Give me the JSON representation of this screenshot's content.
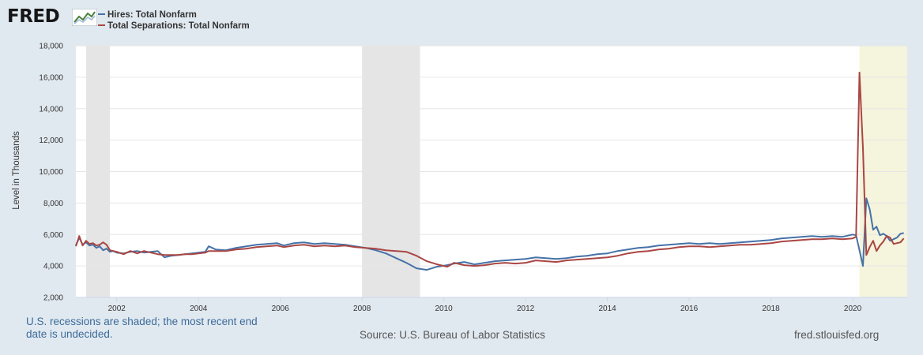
{
  "brand": {
    "logo_text": "FRED",
    "logo_icon": "fred-chart-logo-icon"
  },
  "legend": {
    "items": [
      {
        "label": "Hires: Total Nonfarm",
        "color": "#4572a7"
      },
      {
        "label": "Total Separations: Total Nonfarm",
        "color": "#aa4643"
      }
    ]
  },
  "footer": {
    "note": "U.S. recessions are shaded; the most recent end date is undecided.",
    "source": "Source: U.S. Bureau of Labor Statistics",
    "url": "fred.stlouisfed.org"
  },
  "colors": {
    "background": "#e1e9f0",
    "plot": "#ffffff",
    "recession": "#e5e5e5",
    "recession_open": "#f5f4dc",
    "gridline": "#e6e6e6",
    "hires": "#4572a7",
    "separations": "#aa4643"
  },
  "chart_data": {
    "type": "line",
    "title": "",
    "xlabel": "",
    "ylabel": "Level in Thousands",
    "xlim": [
      "2001-01",
      "2021-05"
    ],
    "ylim": [
      2000,
      18000
    ],
    "grid": true,
    "legend_position": "top-left",
    "x_ticks": [
      "2002",
      "2004",
      "2006",
      "2008",
      "2010",
      "2012",
      "2014",
      "2016",
      "2018",
      "2020"
    ],
    "y_ticks": [
      "2,000",
      "4,000",
      "6,000",
      "8,000",
      "10,000",
      "12,000",
      "14,000",
      "16,000",
      "18,000"
    ],
    "recessions": [
      {
        "start": "2001-04",
        "end": "2001-11"
      },
      {
        "start": "2008-01",
        "end": "2009-06"
      },
      {
        "start": "2020-03",
        "end": "2021-05",
        "open_ended": true
      }
    ],
    "series": [
      {
        "name": "Hires: Total Nonfarm",
        "color": "#4572a7",
        "points": [
          [
            "2001-01",
            5300
          ],
          [
            "2001-02",
            5800
          ],
          [
            "2001-03",
            5350
          ],
          [
            "2001-04",
            5500
          ],
          [
            "2001-05",
            5300
          ],
          [
            "2001-06",
            5350
          ],
          [
            "2001-07",
            5150
          ],
          [
            "2001-08",
            5250
          ],
          [
            "2001-09",
            5000
          ],
          [
            "2001-10",
            5100
          ],
          [
            "2001-11",
            4900
          ],
          [
            "2001-12",
            4950
          ],
          [
            "2002-01",
            4850
          ],
          [
            "2002-03",
            4800
          ],
          [
            "2002-05",
            4900
          ],
          [
            "2002-07",
            4950
          ],
          [
            "2002-09",
            4850
          ],
          [
            "2002-11",
            4900
          ],
          [
            "2003-01",
            4950
          ],
          [
            "2003-03",
            4550
          ],
          [
            "2003-05",
            4650
          ],
          [
            "2003-07",
            4700
          ],
          [
            "2003-09",
            4750
          ],
          [
            "2003-11",
            4800
          ],
          [
            "2004-01",
            4850
          ],
          [
            "2004-03",
            4900
          ],
          [
            "2004-04",
            5250
          ],
          [
            "2004-06",
            5050
          ],
          [
            "2004-09",
            5000
          ],
          [
            "2004-12",
            5150
          ],
          [
            "2005-03",
            5250
          ],
          [
            "2005-06",
            5350
          ],
          [
            "2005-09",
            5400
          ],
          [
            "2005-12",
            5450
          ],
          [
            "2006-02",
            5300
          ],
          [
            "2006-05",
            5450
          ],
          [
            "2006-08",
            5500
          ],
          [
            "2006-11",
            5400
          ],
          [
            "2007-02",
            5450
          ],
          [
            "2007-05",
            5400
          ],
          [
            "2007-08",
            5350
          ],
          [
            "2007-11",
            5250
          ],
          [
            "2008-02",
            5150
          ],
          [
            "2008-05",
            5000
          ],
          [
            "2008-08",
            4800
          ],
          [
            "2008-11",
            4500
          ],
          [
            "2009-02",
            4200
          ],
          [
            "2009-05",
            3850
          ],
          [
            "2009-08",
            3750
          ],
          [
            "2009-11",
            3950
          ],
          [
            "2010-02",
            4050
          ],
          [
            "2010-04",
            4150
          ],
          [
            "2010-07",
            4250
          ],
          [
            "2010-10",
            4100
          ],
          [
            "2011-01",
            4200
          ],
          [
            "2011-04",
            4300
          ],
          [
            "2011-07",
            4350
          ],
          [
            "2011-10",
            4400
          ],
          [
            "2012-01",
            4450
          ],
          [
            "2012-04",
            4550
          ],
          [
            "2012-07",
            4500
          ],
          [
            "2012-10",
            4450
          ],
          [
            "2013-01",
            4500
          ],
          [
            "2013-04",
            4600
          ],
          [
            "2013-07",
            4650
          ],
          [
            "2013-10",
            4750
          ],
          [
            "2014-01",
            4800
          ],
          [
            "2014-04",
            4950
          ],
          [
            "2014-07",
            5050
          ],
          [
            "2014-10",
            5150
          ],
          [
            "2015-01",
            5200
          ],
          [
            "2015-04",
            5300
          ],
          [
            "2015-07",
            5350
          ],
          [
            "2015-10",
            5400
          ],
          [
            "2016-01",
            5450
          ],
          [
            "2016-04",
            5400
          ],
          [
            "2016-07",
            5450
          ],
          [
            "2016-10",
            5400
          ],
          [
            "2017-01",
            5450
          ],
          [
            "2017-04",
            5500
          ],
          [
            "2017-07",
            5550
          ],
          [
            "2017-10",
            5600
          ],
          [
            "2018-01",
            5650
          ],
          [
            "2018-04",
            5750
          ],
          [
            "2018-07",
            5800
          ],
          [
            "2018-10",
            5850
          ],
          [
            "2019-01",
            5900
          ],
          [
            "2019-04",
            5850
          ],
          [
            "2019-07",
            5900
          ],
          [
            "2019-10",
            5850
          ],
          [
            "2020-01",
            6000
          ],
          [
            "2020-02",
            5950
          ],
          [
            "2020-03",
            5000
          ],
          [
            "2020-04",
            4000
          ],
          [
            "2020-05",
            8300
          ],
          [
            "2020-06",
            7600
          ],
          [
            "2020-07",
            6300
          ],
          [
            "2020-08",
            6500
          ],
          [
            "2020-09",
            5950
          ],
          [
            "2020-10",
            6050
          ],
          [
            "2020-11",
            5900
          ],
          [
            "2020-12",
            5600
          ],
          [
            "2021-01",
            5700
          ],
          [
            "2021-02",
            5800
          ],
          [
            "2021-03",
            6050
          ],
          [
            "2021-04",
            6100
          ]
        ]
      },
      {
        "name": "Total Separations: Total Nonfarm",
        "color": "#aa4643",
        "points": [
          [
            "2001-01",
            5250
          ],
          [
            "2001-02",
            5900
          ],
          [
            "2001-03",
            5300
          ],
          [
            "2001-04",
            5600
          ],
          [
            "2001-05",
            5400
          ],
          [
            "2001-06",
            5450
          ],
          [
            "2001-07",
            5300
          ],
          [
            "2001-08",
            5350
          ],
          [
            "2001-09",
            5500
          ],
          [
            "2001-10",
            5350
          ],
          [
            "2001-11",
            5000
          ],
          [
            "2001-12",
            4950
          ],
          [
            "2002-01",
            4900
          ],
          [
            "2002-03",
            4750
          ],
          [
            "2002-05",
            4950
          ],
          [
            "2002-07",
            4800
          ],
          [
            "2002-09",
            4950
          ],
          [
            "2002-11",
            4850
          ],
          [
            "2003-01",
            4750
          ],
          [
            "2003-03",
            4700
          ],
          [
            "2003-05",
            4700
          ],
          [
            "2003-07",
            4700
          ],
          [
            "2003-09",
            4750
          ],
          [
            "2003-11",
            4750
          ],
          [
            "2004-01",
            4800
          ],
          [
            "2004-03",
            4850
          ],
          [
            "2004-04",
            4950
          ],
          [
            "2004-06",
            4950
          ],
          [
            "2004-09",
            4950
          ],
          [
            "2004-12",
            5050
          ],
          [
            "2005-03",
            5100
          ],
          [
            "2005-06",
            5200
          ],
          [
            "2005-09",
            5250
          ],
          [
            "2005-12",
            5300
          ],
          [
            "2006-02",
            5200
          ],
          [
            "2006-05",
            5300
          ],
          [
            "2006-08",
            5350
          ],
          [
            "2006-11",
            5250
          ],
          [
            "2007-02",
            5300
          ],
          [
            "2007-05",
            5250
          ],
          [
            "2007-08",
            5300
          ],
          [
            "2007-11",
            5200
          ],
          [
            "2008-02",
            5150
          ],
          [
            "2008-05",
            5100
          ],
          [
            "2008-08",
            5000
          ],
          [
            "2008-11",
            4950
          ],
          [
            "2009-02",
            4900
          ],
          [
            "2009-05",
            4650
          ],
          [
            "2009-08",
            4300
          ],
          [
            "2009-11",
            4100
          ],
          [
            "2010-02",
            3950
          ],
          [
            "2010-04",
            4200
          ],
          [
            "2010-07",
            4050
          ],
          [
            "2010-10",
            4000
          ],
          [
            "2011-01",
            4050
          ],
          [
            "2011-04",
            4150
          ],
          [
            "2011-07",
            4200
          ],
          [
            "2011-10",
            4150
          ],
          [
            "2012-01",
            4200
          ],
          [
            "2012-04",
            4350
          ],
          [
            "2012-07",
            4300
          ],
          [
            "2012-10",
            4250
          ],
          [
            "2013-01",
            4350
          ],
          [
            "2013-04",
            4400
          ],
          [
            "2013-07",
            4450
          ],
          [
            "2013-10",
            4500
          ],
          [
            "2014-01",
            4550
          ],
          [
            "2014-04",
            4650
          ],
          [
            "2014-07",
            4800
          ],
          [
            "2014-10",
            4900
          ],
          [
            "2015-01",
            4950
          ],
          [
            "2015-04",
            5050
          ],
          [
            "2015-07",
            5100
          ],
          [
            "2015-10",
            5200
          ],
          [
            "2016-01",
            5250
          ],
          [
            "2016-04",
            5250
          ],
          [
            "2016-07",
            5200
          ],
          [
            "2016-10",
            5250
          ],
          [
            "2017-01",
            5300
          ],
          [
            "2017-04",
            5350
          ],
          [
            "2017-07",
            5350
          ],
          [
            "2017-10",
            5400
          ],
          [
            "2018-01",
            5450
          ],
          [
            "2018-04",
            5550
          ],
          [
            "2018-07",
            5600
          ],
          [
            "2018-10",
            5650
          ],
          [
            "2019-01",
            5700
          ],
          [
            "2019-04",
            5700
          ],
          [
            "2019-07",
            5750
          ],
          [
            "2019-10",
            5700
          ],
          [
            "2020-01",
            5750
          ],
          [
            "2020-02",
            5850
          ],
          [
            "2020-03",
            16300
          ],
          [
            "2020-04",
            11500
          ],
          [
            "2020-05",
            4700
          ],
          [
            "2020-06",
            5200
          ],
          [
            "2020-07",
            5600
          ],
          [
            "2020-08",
            4950
          ],
          [
            "2020-09",
            5300
          ],
          [
            "2020-10",
            5550
          ],
          [
            "2020-11",
            5900
          ],
          [
            "2020-12",
            5800
          ],
          [
            "2021-01",
            5400
          ],
          [
            "2021-02",
            5450
          ],
          [
            "2021-03",
            5500
          ],
          [
            "2021-04",
            5750
          ]
        ]
      }
    ]
  }
}
